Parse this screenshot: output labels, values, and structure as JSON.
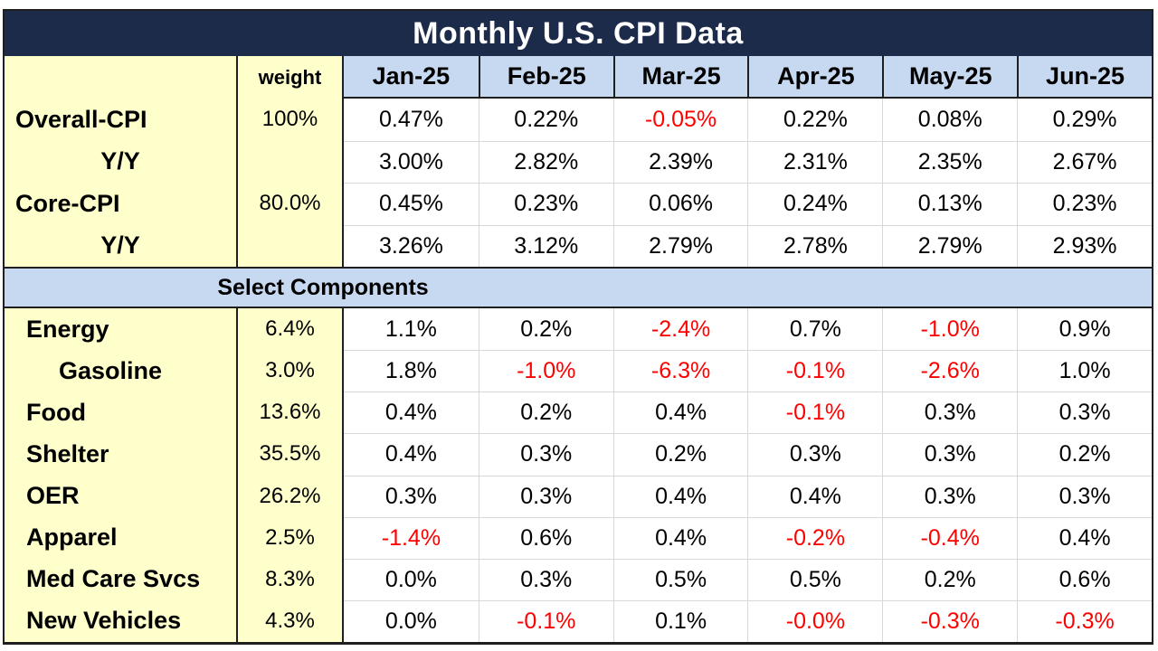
{
  "title": "Monthly U.S. CPI Data",
  "section_label": "Select Components",
  "colors": {
    "title_bg": "#1c2b4a",
    "title_text": "#ffffff",
    "header_blue": "#c6d9f1",
    "label_yellow": "#ffffcc",
    "negative_red": "#ff0000",
    "gridline": "#d8d8d8",
    "dark_border": "#1f1f1f"
  },
  "header": {
    "weight_label": "weight",
    "months": [
      "Jan-25",
      "Feb-25",
      "Mar-25",
      "Apr-25",
      "May-25",
      "Jun-25"
    ]
  },
  "summary_rows": [
    {
      "label": "Overall-CPI",
      "align": "left",
      "weight": "100%",
      "values": [
        "0.47%",
        "0.22%",
        "-0.05%",
        "0.22%",
        "0.08%",
        "0.29%"
      ]
    },
    {
      "label": "Y/Y",
      "align": "center",
      "weight": "",
      "values": [
        "3.00%",
        "2.82%",
        "2.39%",
        "2.31%",
        "2.35%",
        "2.67%"
      ]
    },
    {
      "label": "Core-CPI",
      "align": "left",
      "weight": "80.0%",
      "values": [
        "0.45%",
        "0.23%",
        "0.06%",
        "0.24%",
        "0.13%",
        "0.23%"
      ]
    },
    {
      "label": "Y/Y",
      "align": "center",
      "weight": "",
      "values": [
        "3.26%",
        "3.12%",
        "2.79%",
        "2.78%",
        "2.79%",
        "2.93%"
      ]
    }
  ],
  "component_rows": [
    {
      "label": "Energy",
      "indent": false,
      "weight": "6.4%",
      "values": [
        "1.1%",
        "0.2%",
        "-2.4%",
        "0.7%",
        "-1.0%",
        "0.9%"
      ]
    },
    {
      "label": "Gasoline",
      "indent": true,
      "weight": "3.0%",
      "values": [
        "1.8%",
        "-1.0%",
        "-6.3%",
        "-0.1%",
        "-2.6%",
        "1.0%"
      ]
    },
    {
      "label": "Food",
      "indent": false,
      "weight": "13.6%",
      "values": [
        "0.4%",
        "0.2%",
        "0.4%",
        "-0.1%",
        "0.3%",
        "0.3%"
      ]
    },
    {
      "label": "Shelter",
      "indent": false,
      "weight": "35.5%",
      "values": [
        "0.4%",
        "0.3%",
        "0.2%",
        "0.3%",
        "0.3%",
        "0.2%"
      ]
    },
    {
      "label": "OER",
      "indent": false,
      "weight": "26.2%",
      "values": [
        "0.3%",
        "0.3%",
        "0.4%",
        "0.4%",
        "0.3%",
        "0.3%"
      ]
    },
    {
      "label": "Apparel",
      "indent": false,
      "weight": "2.5%",
      "values": [
        "-1.4%",
        "0.6%",
        "0.4%",
        "-0.2%",
        "-0.4%",
        "0.4%"
      ]
    },
    {
      "label": "Med Care Svcs",
      "indent": false,
      "weight": "8.3%",
      "values": [
        "0.0%",
        "0.3%",
        "0.5%",
        "0.5%",
        "0.2%",
        "0.6%"
      ]
    },
    {
      "label": "New Vehicles",
      "indent": false,
      "weight": "4.3%",
      "values": [
        "0.0%",
        "-0.1%",
        "0.1%",
        "-0.0%",
        "-0.3%",
        "-0.3%"
      ]
    }
  ],
  "chart_data": {
    "type": "table",
    "title": "Monthly U.S. CPI Data",
    "columns": [
      "",
      "weight",
      "Jan-25",
      "Feb-25",
      "Mar-25",
      "Apr-25",
      "May-25",
      "Jun-25"
    ],
    "rows": [
      [
        "Overall-CPI",
        "100%",
        "0.47%",
        "0.22%",
        "-0.05%",
        "0.22%",
        "0.08%",
        "0.29%"
      ],
      [
        "Y/Y",
        "",
        "3.00%",
        "2.82%",
        "2.39%",
        "2.31%",
        "2.35%",
        "2.67%"
      ],
      [
        "Core-CPI",
        "80.0%",
        "0.45%",
        "0.23%",
        "0.06%",
        "0.24%",
        "0.13%",
        "0.23%"
      ],
      [
        "Y/Y",
        "",
        "3.26%",
        "3.12%",
        "2.79%",
        "2.78%",
        "2.79%",
        "2.93%"
      ],
      [
        "Select Components",
        "",
        "",
        "",
        "",
        "",
        "",
        ""
      ],
      [
        "Energy",
        "6.4%",
        "1.1%",
        "0.2%",
        "-2.4%",
        "0.7%",
        "-1.0%",
        "0.9%"
      ],
      [
        "Gasoline",
        "3.0%",
        "1.8%",
        "-1.0%",
        "-6.3%",
        "-0.1%",
        "-2.6%",
        "1.0%"
      ],
      [
        "Food",
        "13.6%",
        "0.4%",
        "0.2%",
        "0.4%",
        "-0.1%",
        "0.3%",
        "0.3%"
      ],
      [
        "Shelter",
        "35.5%",
        "0.4%",
        "0.3%",
        "0.2%",
        "0.3%",
        "0.3%",
        "0.2%"
      ],
      [
        "OER",
        "26.2%",
        "0.3%",
        "0.3%",
        "0.4%",
        "0.4%",
        "0.3%",
        "0.3%"
      ],
      [
        "Apparel",
        "2.5%",
        "-1.4%",
        "0.6%",
        "0.4%",
        "-0.2%",
        "-0.4%",
        "0.4%"
      ],
      [
        "Med Care Svcs",
        "8.3%",
        "0.0%",
        "0.3%",
        "0.5%",
        "0.5%",
        "0.2%",
        "0.6%"
      ],
      [
        "New Vehicles",
        "4.3%",
        "0.0%",
        "-0.1%",
        "0.1%",
        "-0.0%",
        "-0.3%",
        "-0.3%"
      ]
    ],
    "notes": "Negative values shown in red"
  }
}
